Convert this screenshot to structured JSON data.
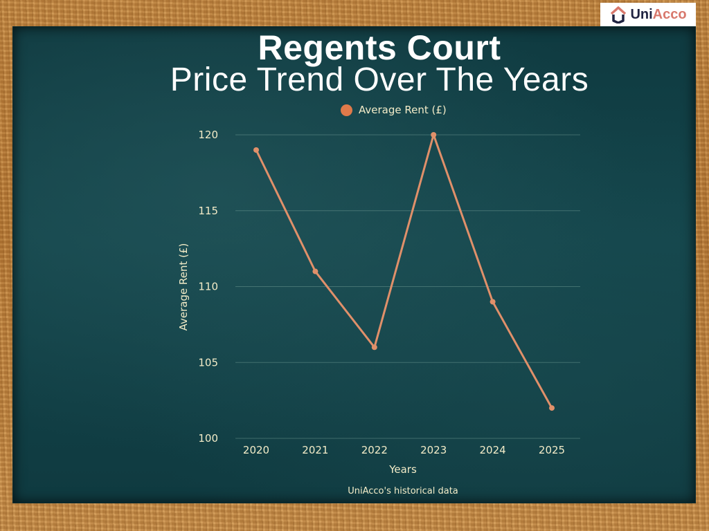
{
  "logo": {
    "part1": "Uni",
    "part2": "Acco"
  },
  "header": {
    "title": "Regents Court",
    "subtitle": "Price Trend Over The Years"
  },
  "legend": {
    "label": "Average Rent (£)",
    "color": "#e07a4a"
  },
  "footer": {
    "source": "UniAcco's historical data"
  },
  "colors": {
    "board": "#14464c",
    "frame": "#c48a45",
    "line": "#e0906a",
    "text": "#f3ecc8"
  },
  "chart_data": {
    "type": "line",
    "title": "Regents Court Price Trend Over The Years",
    "categories": [
      "2020",
      "2021",
      "2022",
      "2023",
      "2024",
      "2025"
    ],
    "series": [
      {
        "name": "Average Rent (£)",
        "values": [
          119,
          111,
          106,
          120,
          109,
          102
        ]
      }
    ],
    "xlabel": "Years",
    "ylabel": "Average Rent (£)",
    "ylim": [
      100,
      120
    ],
    "yticks": [
      "100",
      "105",
      "110",
      "115",
      "120"
    ],
    "grid": true,
    "legend_position": "top",
    "annotations": [
      "UniAcco's historical data"
    ]
  }
}
